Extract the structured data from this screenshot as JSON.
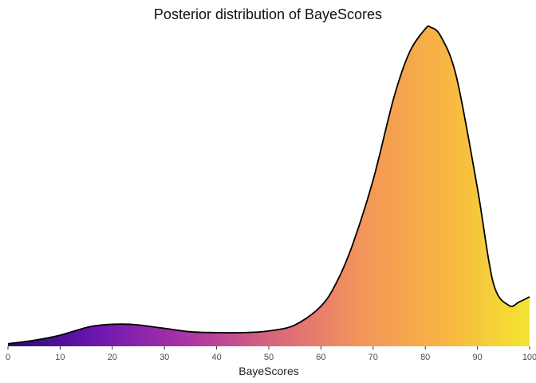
{
  "chart_data": {
    "type": "area",
    "title": "Posterior distribution of BayeScores",
    "xlabel": "BayeScores",
    "ylabel": "",
    "xlim": [
      0,
      100
    ],
    "ylim": [
      0,
      0.0375
    ],
    "x_ticks": [
      "0",
      "10",
      "20",
      "30",
      "40",
      "50",
      "60",
      "70",
      "80",
      "90",
      "100"
    ],
    "grid": false,
    "legend": "none",
    "fill_gradient": [
      "#2a0a70",
      "#6a17b0",
      "#a832a6",
      "#d7637d",
      "#f2935c",
      "#f8b444",
      "#f4e432"
    ],
    "outline_color": "#000000",
    "series": [
      {
        "x": [
          0,
          5,
          10,
          15,
          18,
          22,
          25,
          30,
          35,
          40,
          45,
          50,
          55,
          60,
          63,
          66,
          70,
          74,
          77,
          80,
          81,
          83,
          86,
          90,
          93,
          96,
          98,
          100
        ],
        "y": [
          0.0003,
          0.0007,
          0.0013,
          0.0022,
          0.0025,
          0.0026,
          0.0025,
          0.0021,
          0.0017,
          0.0016,
          0.0016,
          0.0018,
          0.0025,
          0.0047,
          0.0075,
          0.0118,
          0.0195,
          0.0292,
          0.0345,
          0.0372,
          0.0374,
          0.0363,
          0.0315,
          0.0185,
          0.0075,
          0.0048,
          0.0052,
          0.0058
        ]
      }
    ]
  }
}
